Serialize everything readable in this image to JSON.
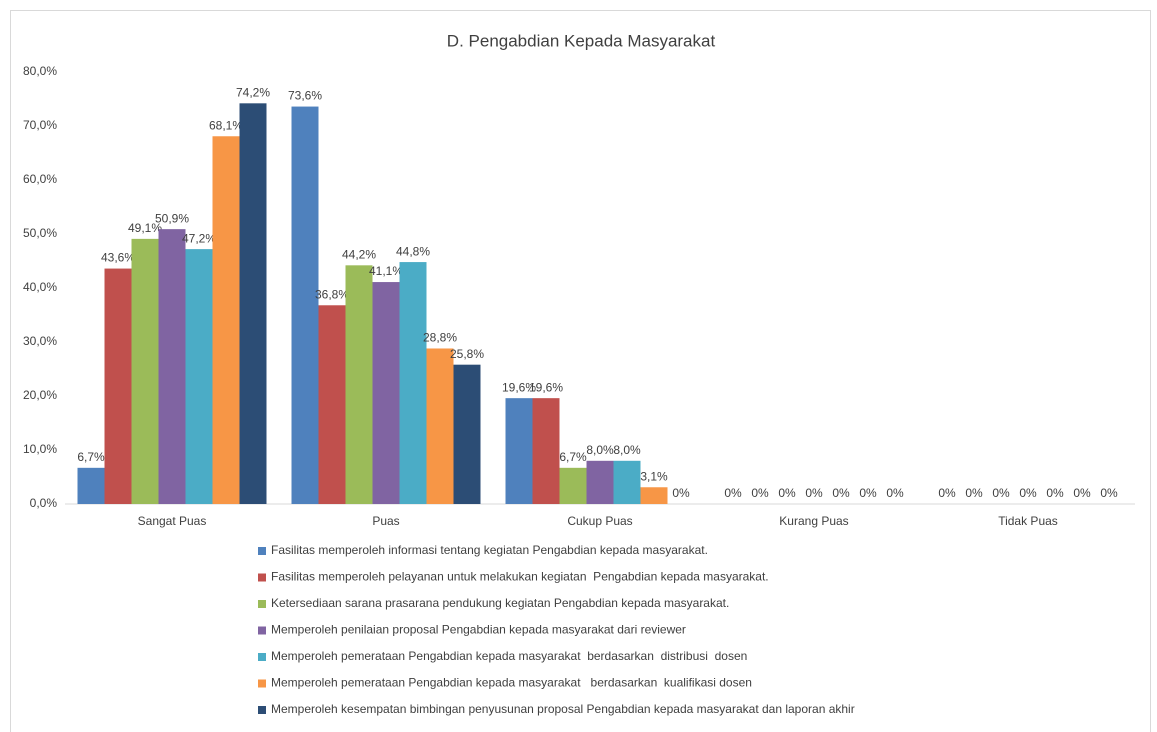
{
  "chart_data": {
    "type": "bar",
    "title": "D. Pengabdian Kepada Masyarakat",
    "categories": [
      "Sangat Puas",
      "Puas",
      "Cukup Puas",
      "Kurang Puas",
      "Tidak Puas"
    ],
    "series": [
      {
        "name": "Fasilitas memperoleh informasi tentang kegiatan Pengabdian kepada masyarakat.",
        "color": "#4f81bd",
        "values": [
          6.7,
          73.6,
          19.6,
          0,
          0
        ],
        "value_labels": [
          "6,7%",
          "73,6%",
          "19,6%",
          "0%",
          "0%"
        ]
      },
      {
        "name": "Fasilitas memperoleh pelayanan untuk melakukan kegiatan  Pengabdian kepada masyarakat.",
        "color": "#c0504d",
        "values": [
          43.6,
          36.8,
          19.6,
          0,
          0
        ],
        "value_labels": [
          "43,6%",
          "36,8%",
          "19,6%",
          "0%",
          "0%"
        ]
      },
      {
        "name": "Ketersediaan sarana prasarana pendukung kegiatan Pengabdian kepada masyarakat.",
        "color": "#9bbb59",
        "values": [
          49.1,
          44.2,
          6.7,
          0,
          0
        ],
        "value_labels": [
          "49,1%",
          "44,2%",
          "6,7%",
          "0%",
          "0%"
        ]
      },
      {
        "name": "Memperoleh penilaian proposal Pengabdian kepada masyarakat dari reviewer",
        "color": "#8064a2",
        "values": [
          50.9,
          41.1,
          8.0,
          0,
          0
        ],
        "value_labels": [
          "50,9%",
          "41,1%",
          "8,0%",
          "0%",
          "0%"
        ]
      },
      {
        "name": "Memperoleh pemerataan Pengabdian kepada masyarakat  berdasarkan  distribusi  dosen",
        "color": "#4bacc6",
        "values": [
          47.2,
          44.8,
          8.0,
          0,
          0
        ],
        "value_labels": [
          "47,2%",
          "44,8%",
          "8,0%",
          "0%",
          "0%"
        ]
      },
      {
        "name": "Memperoleh pemerataan Pengabdian kepada masyarakat   berdasarkan  kualifikasi dosen",
        "color": "#f79646",
        "values": [
          68.1,
          28.8,
          3.1,
          0,
          0
        ],
        "value_labels": [
          "68,1%",
          "28,8%",
          "3,1%",
          "0%",
          "0%"
        ]
      },
      {
        "name": "Memperoleh kesempatan bimbingan penyusunan proposal Pengabdian kepada masyarakat dan laporan akhir",
        "color": "#2c4d75",
        "values": [
          74.2,
          25.8,
          0,
          0,
          0
        ],
        "value_labels": [
          "74,2%",
          "25,8%",
          "0%",
          "0%",
          "0%"
        ]
      }
    ],
    "ylim": [
      0,
      80
    ],
    "yticks": [
      {
        "value": 0,
        "label": "0,0%"
      },
      {
        "value": 10,
        "label": "10,0%"
      },
      {
        "value": 20,
        "label": "20,0%"
      },
      {
        "value": 30,
        "label": "30,0%"
      },
      {
        "value": 40,
        "label": "40,0%"
      },
      {
        "value": 50,
        "label": "50,0%"
      },
      {
        "value": 60,
        "label": "60,0%"
      },
      {
        "value": 70,
        "label": "70,0%"
      },
      {
        "value": 80,
        "label": "80,0%"
      }
    ],
    "grid": false,
    "legend": "bottom"
  }
}
